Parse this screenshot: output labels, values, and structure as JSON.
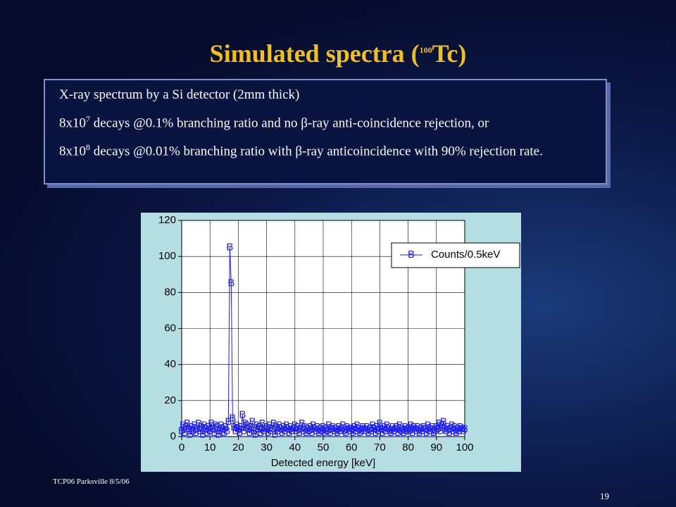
{
  "slide": {
    "title": [
      {
        "text": "Simulated spectra  ("
      },
      {
        "text": "100",
        "sup": true
      },
      {
        "text": "Tc)"
      }
    ],
    "bullets": [
      [
        {
          "text": "X-ray spectrum by a Si detector (2mm thick)"
        }
      ],
      [
        {
          "text": "8x10"
        },
        {
          "text": "7",
          "sup": true
        },
        {
          "text": " decays @0.1% branching ratio and no "
        },
        {
          "text": "β"
        },
        {
          "text": "-ray anti-coincidence  rejection, or"
        }
      ],
      [
        {
          "text": "8x10"
        },
        {
          "text": "8",
          "sup": true
        },
        {
          "text": " decays @0.01% branching ratio with "
        },
        {
          "text": "β"
        },
        {
          "text": "-ray anticoincidence with 90% rejection rate."
        }
      ]
    ],
    "footer": "TCP06 Parksville 8/5/06",
    "page_number": "19"
  },
  "chart_data": {
    "type": "line",
    "xlabel": "Detected energy [keV]",
    "x": [
      0,
      0.5,
      1,
      1.5,
      2,
      2.5,
      3,
      3.5,
      4,
      4.5,
      5,
      5.5,
      6,
      6.5,
      7,
      7.5,
      8,
      8.5,
      9,
      9.5,
      10,
      10.5,
      11,
      11.5,
      12,
      12.5,
      13,
      13.5,
      14,
      14.5,
      15,
      15.5,
      16,
      16.5,
      17,
      17.5,
      18,
      18.5,
      19,
      19.5,
      20,
      20.5,
      21,
      21.5,
      22,
      22.5,
      23,
      23.5,
      24,
      24.5,
      25,
      25.5,
      26,
      26.5,
      27,
      27.5,
      28,
      28.5,
      29,
      29.5,
      30,
      30.5,
      31,
      31.5,
      32,
      32.5,
      33,
      33.5,
      34,
      34.5,
      35,
      35.5,
      36,
      36.5,
      37,
      37.5,
      38,
      38.5,
      39,
      39.5,
      40,
      40.5,
      41,
      41.5,
      42,
      42.5,
      43,
      43.5,
      44,
      44.5,
      45,
      45.5,
      46,
      46.5,
      47,
      47.5,
      48,
      48.5,
      49,
      49.5,
      50,
      50.5,
      51,
      51.5,
      52,
      52.5,
      53,
      53.5,
      54,
      54.5,
      55,
      55.5,
      56,
      56.5,
      57,
      57.5,
      58,
      58.5,
      59,
      59.5,
      60,
      60.5,
      61,
      61.5,
      62,
      62.5,
      63,
      63.5,
      64,
      64.5,
      65,
      65.5,
      66,
      66.5,
      67,
      67.5,
      68,
      68.5,
      69,
      69.5,
      70,
      70.5,
      71,
      71.5,
      72,
      72.5,
      73,
      73.5,
      74,
      74.5,
      75,
      75.5,
      76,
      76.5,
      77,
      77.5,
      78,
      78.5,
      79,
      79.5,
      80,
      80.5,
      81,
      81.5,
      82,
      82.5,
      83,
      83.5,
      84,
      84.5,
      85,
      85.5,
      86,
      86.5,
      87,
      87.5,
      88,
      88.5,
      89,
      89.5,
      90,
      90.5,
      91,
      91.5,
      92,
      92.5,
      93,
      93.5,
      94,
      94.5,
      95,
      95.5,
      96,
      96.5,
      97,
      97.5,
      98,
      98.5,
      99,
      99.5,
      100
    ],
    "series": [
      {
        "name": "Counts/0.5keV",
        "marker": "B",
        "color": "#1a1aff",
        "values": [
          3,
          6,
          2,
          5,
          7,
          4,
          1,
          5,
          3,
          6,
          2,
          4,
          7,
          3,
          5,
          1,
          6,
          4,
          2,
          5,
          3,
          7,
          4,
          2,
          6,
          5,
          1,
          3,
          6,
          4,
          2,
          5,
          3,
          8,
          105,
          85,
          10,
          5,
          3,
          6,
          4,
          2,
          5,
          12,
          3,
          7,
          6,
          4,
          2,
          5,
          8,
          3,
          1,
          6,
          4,
          5,
          2,
          7,
          3,
          4,
          5,
          2,
          6,
          3,
          4,
          7,
          1,
          5,
          3,
          6,
          4,
          2,
          5,
          3,
          6,
          4,
          2,
          5,
          3,
          4,
          6,
          3,
          5,
          2,
          4,
          7,
          3,
          5,
          2,
          4,
          3,
          5,
          2,
          6,
          4,
          3,
          5,
          2,
          4,
          3,
          5,
          2,
          4,
          3,
          6,
          2,
          4,
          5,
          3,
          4,
          2,
          5,
          3,
          4,
          6,
          3,
          2,
          5,
          4,
          3,
          4,
          2,
          5,
          3,
          6,
          4,
          2,
          3,
          5,
          4,
          3,
          5,
          2,
          4,
          3,
          6,
          4,
          2,
          5,
          3,
          7,
          4,
          2,
          5,
          3,
          6,
          4,
          3,
          2,
          5,
          3,
          4,
          5,
          2,
          6,
          3,
          4,
          2,
          5,
          3,
          4,
          3,
          6,
          2,
          5,
          4,
          3,
          5,
          2,
          4,
          3,
          5,
          4,
          2,
          6,
          3,
          4,
          5,
          2,
          3,
          5,
          4,
          7,
          3,
          6,
          8,
          4,
          3,
          5,
          2,
          4,
          6,
          3,
          5,
          2,
          4,
          3,
          5,
          4,
          3,
          4
        ]
      }
    ],
    "xlim": [
      0,
      100
    ],
    "xticks": [
      0,
      10,
      20,
      30,
      40,
      50,
      60,
      70,
      80,
      90,
      100
    ],
    "ylim": [
      0,
      120
    ],
    "yticks": [
      0,
      20,
      40,
      60,
      80,
      100,
      120
    ],
    "grid": true,
    "legend": "upper right"
  }
}
